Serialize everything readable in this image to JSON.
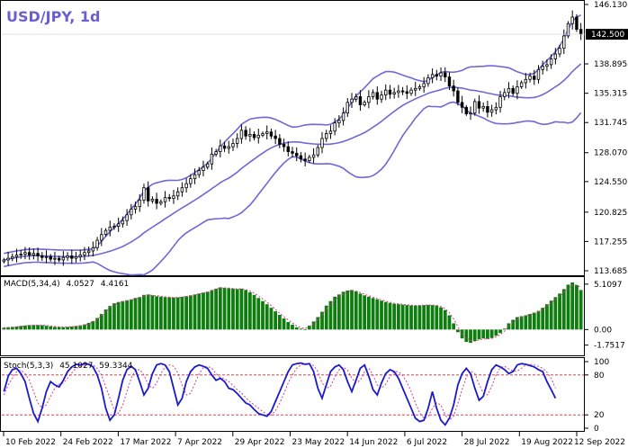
{
  "chart_data": [
    {
      "type": "candlestick",
      "title": "USD/JPY, 1d",
      "current_price": "142.500",
      "ylim": [
        113.68,
        146.13
      ],
      "y_ticks": [
        "146.130",
        "142.500",
        "138.895",
        "135.315",
        "131.745",
        "128.070",
        "124.550",
        "120.825",
        "117.255",
        "113.685"
      ],
      "x_ticks": [
        "10 Feb 2022",
        "24 Feb 2022",
        "17 Mar 2022",
        "7 Apr 2022",
        "29 Apr 2022",
        "23 May 2022",
        "14 Jun 2022",
        "6 Jul 2022",
        "28 Jul 2022",
        "19 Aug 2022",
        "12 Sep 2022"
      ],
      "close": [
        115.0,
        115.2,
        115.4,
        115.6,
        115.7,
        115.9,
        115.6,
        115.8,
        115.5,
        115.3,
        115.4,
        115.1,
        115.2,
        115.0,
        115.3,
        115.5,
        115.2,
        115.4,
        115.6,
        115.9,
        116.1,
        116.5,
        117.4,
        118.1,
        118.6,
        119.0,
        119.1,
        119.4,
        119.8,
        120.5,
        121.2,
        121.5,
        122.3,
        123.8,
        122.2,
        122.4,
        121.9,
        122.1,
        122.6,
        122.5,
        122.8,
        123.3,
        123.8,
        124.3,
        124.9,
        125.4,
        125.9,
        126.3,
        126.7,
        127.9,
        128.2,
        128.9,
        128.6,
        128.8,
        129.2,
        129.8,
        130.8,
        130.1,
        130.3,
        129.9,
        130.2,
        130.4,
        130.6,
        130.1,
        129.8,
        129.1,
        128.8,
        128.2,
        128.0,
        127.7,
        127.3,
        127.1,
        127.5,
        127.8,
        128.7,
        129.8,
        130.4,
        130.7,
        131.7,
        132.0,
        132.9,
        134.2,
        134.6,
        134.9,
        133.9,
        134.2,
        134.9,
        135.4,
        134.6,
        135.1,
        135.7,
        135.2,
        135.4,
        135.6,
        135.5,
        135.3,
        135.7,
        135.9,
        136.1,
        136.5,
        137.2,
        137.6,
        137.4,
        137.8,
        137.3,
        136.2,
        135.6,
        134.2,
        133.6,
        132.8,
        132.9,
        134.3,
        133.5,
        133.7,
        133.0,
        133.3,
        133.6,
        134.9,
        135.4,
        135.9,
        135.3,
        136.1,
        136.6,
        137.0,
        137.4,
        137.0,
        138.2,
        138.6,
        138.8,
        139.5,
        140.1,
        140.8,
        142.3,
        143.8,
        144.6,
        143.1,
        142.5
      ],
      "macd": {
        "label": "MACD(5,34,4)",
        "values_text": [
          "4.0527",
          "4.4161"
        ],
        "ylim": [
          -2.6,
          5.5
        ],
        "y_ticks": [
          "5.1097",
          "0.00",
          "-1.7517"
        ],
        "histogram": [
          0.2,
          0.25,
          0.3,
          0.35,
          0.4,
          0.45,
          0.5,
          0.52,
          0.5,
          0.48,
          0.42,
          0.36,
          0.3,
          0.28,
          0.26,
          0.3,
          0.34,
          0.4,
          0.48,
          0.58,
          0.75,
          0.95,
          1.3,
          1.75,
          2.25,
          2.65,
          2.95,
          3.1,
          3.2,
          3.3,
          3.4,
          3.55,
          3.65,
          3.9,
          3.95,
          3.85,
          3.75,
          3.7,
          3.65,
          3.62,
          3.6,
          3.62,
          3.68,
          3.75,
          3.85,
          3.95,
          4.05,
          4.15,
          4.25,
          4.45,
          4.6,
          4.75,
          4.7,
          4.65,
          4.6,
          4.55,
          4.6,
          4.45,
          4.2,
          3.9,
          3.55,
          3.2,
          2.85,
          2.45,
          2.05,
          1.65,
          1.25,
          0.85,
          0.55,
          0.25,
          0.1,
          0.05,
          0.45,
          0.9,
          1.4,
          2.0,
          2.7,
          3.2,
          3.7,
          3.95,
          4.25,
          4.4,
          4.45,
          4.3,
          4.05,
          3.85,
          3.7,
          3.55,
          3.4,
          3.25,
          3.1,
          3.0,
          2.9,
          2.85,
          2.8,
          2.75,
          2.72,
          2.7,
          2.72,
          2.75,
          2.78,
          2.75,
          2.7,
          2.5,
          2.2,
          1.6,
          0.7,
          -0.3,
          -1.0,
          -1.4,
          -1.5,
          -1.3,
          -1.1,
          -1.0,
          -1.05,
          -0.95,
          -0.7,
          -0.4,
          0.1,
          0.7,
          1.1,
          1.4,
          1.5,
          1.6,
          1.75,
          1.9,
          2.1,
          2.45,
          2.85,
          3.25,
          3.65,
          4.05,
          4.55,
          5.05,
          5.3,
          5.0,
          4.45
        ],
        "signal": [
          0.2,
          0.23,
          0.27,
          0.31,
          0.36,
          0.41,
          0.46,
          0.49,
          0.5,
          0.49,
          0.46,
          0.41,
          0.36,
          0.32,
          0.29,
          0.3,
          0.32,
          0.36,
          0.43,
          0.51,
          0.66,
          0.84,
          1.14,
          1.55,
          2.03,
          2.47,
          2.81,
          3.0,
          3.12,
          3.22,
          3.32,
          3.45,
          3.56,
          3.76,
          3.87,
          3.86,
          3.81,
          3.75,
          3.69,
          3.65,
          3.62,
          3.62,
          3.66,
          3.72,
          3.8,
          3.9,
          4.0,
          4.11,
          4.21,
          4.38,
          4.53,
          4.68,
          4.69,
          4.67,
          4.63,
          4.58,
          4.59,
          4.51,
          4.34,
          4.1,
          3.79,
          3.44,
          3.09,
          2.7,
          2.27,
          1.82,
          1.45,
          1.1,
          0.75,
          0.4,
          0.22,
          0.13,
          0.32,
          0.65,
          1.1,
          1.62,
          2.24,
          2.82,
          3.35,
          3.7,
          4.02,
          4.25,
          4.37,
          4.33,
          4.17,
          3.97,
          3.81,
          3.65,
          3.49,
          3.34,
          3.2,
          3.07,
          2.96,
          2.89,
          2.84,
          2.79,
          2.75,
          2.72,
          2.72,
          2.74,
          2.76,
          2.75,
          2.72,
          2.59,
          2.35,
          1.9,
          1.21,
          0.32,
          -0.45,
          -0.95,
          -1.23,
          -1.3,
          -1.17,
          -1.07,
          -1.06,
          -1.0,
          -0.82,
          -0.57,
          -0.17,
          0.35,
          0.78,
          1.11,
          1.35,
          1.51,
          1.67,
          1.82,
          2.01,
          2.3,
          2.64,
          3.02,
          3.37,
          3.72,
          4.18,
          4.58,
          5.0,
          5.0,
          4.75
        ]
      },
      "stochastic": {
        "label": "Stoch(5,3,3)",
        "values_text": [
          "45.1027",
          "59.3344"
        ],
        "ylim": [
          0,
          100
        ],
        "y_ticks": [
          "100",
          "80",
          "20",
          "0"
        ],
        "levels": [
          80,
          20
        ],
        "main": [
          55,
          78,
          88,
          90,
          82,
          70,
          45,
          22,
          10,
          30,
          55,
          70,
          65,
          62,
          72,
          85,
          92,
          96,
          95,
          97,
          96,
          92,
          80,
          60,
          30,
          12,
          20,
          45,
          72,
          88,
          93,
          88,
          70,
          50,
          60,
          82,
          95,
          97,
          95,
          85,
          60,
          35,
          45,
          70,
          85,
          92,
          95,
          93,
          90,
          80,
          72,
          75,
          70,
          60,
          58,
          52,
          45,
          38,
          35,
          28,
          22,
          20,
          18,
          25,
          40,
          55,
          70,
          85,
          95,
          97,
          98,
          96,
          97,
          85,
          60,
          45,
          65,
          85,
          92,
          95,
          88,
          70,
          55,
          72,
          90,
          95,
          78,
          58,
          50,
          68,
          82,
          88,
          85,
          75,
          60,
          45,
          30,
          15,
          10,
          12,
          30,
          55,
          30,
          12,
          5,
          15,
          35,
          65,
          82,
          90,
          82,
          60,
          42,
          48,
          70,
          88,
          95,
          92,
          88,
          82,
          85,
          95,
          97,
          96,
          94,
          92,
          88,
          85,
          70,
          58,
          45
        ],
        "signal": [
          50,
          65,
          75,
          85,
          87,
          82,
          72,
          55,
          38,
          30,
          35,
          48,
          60,
          66,
          68,
          75,
          83,
          90,
          93,
          95,
          96,
          95,
          90,
          80,
          62,
          45,
          27,
          22,
          35,
          55,
          75,
          87,
          88,
          80,
          65,
          60,
          68,
          82,
          92,
          95,
          93,
          83,
          65,
          50,
          52,
          67,
          82,
          91,
          93,
          90,
          82,
          76,
          74,
          70,
          64,
          58,
          53,
          46,
          40,
          35,
          30,
          25,
          21,
          20,
          26,
          38,
          52,
          68,
          80,
          90,
          95,
          97,
          97,
          94,
          85,
          68,
          60,
          63,
          77,
          88,
          92,
          87,
          75,
          68,
          72,
          85,
          90,
          80,
          65,
          60,
          66,
          78,
          85,
          85,
          79,
          69,
          55,
          38,
          23,
          15,
          17,
          30,
          38,
          35,
          20,
          12,
          18,
          37,
          58,
          77,
          86,
          82,
          66,
          53,
          50,
          63,
          80,
          91,
          93,
          89,
          86,
          86,
          90,
          95,
          96,
          95,
          93,
          90,
          84,
          75,
          60
        ]
      }
    }
  ]
}
